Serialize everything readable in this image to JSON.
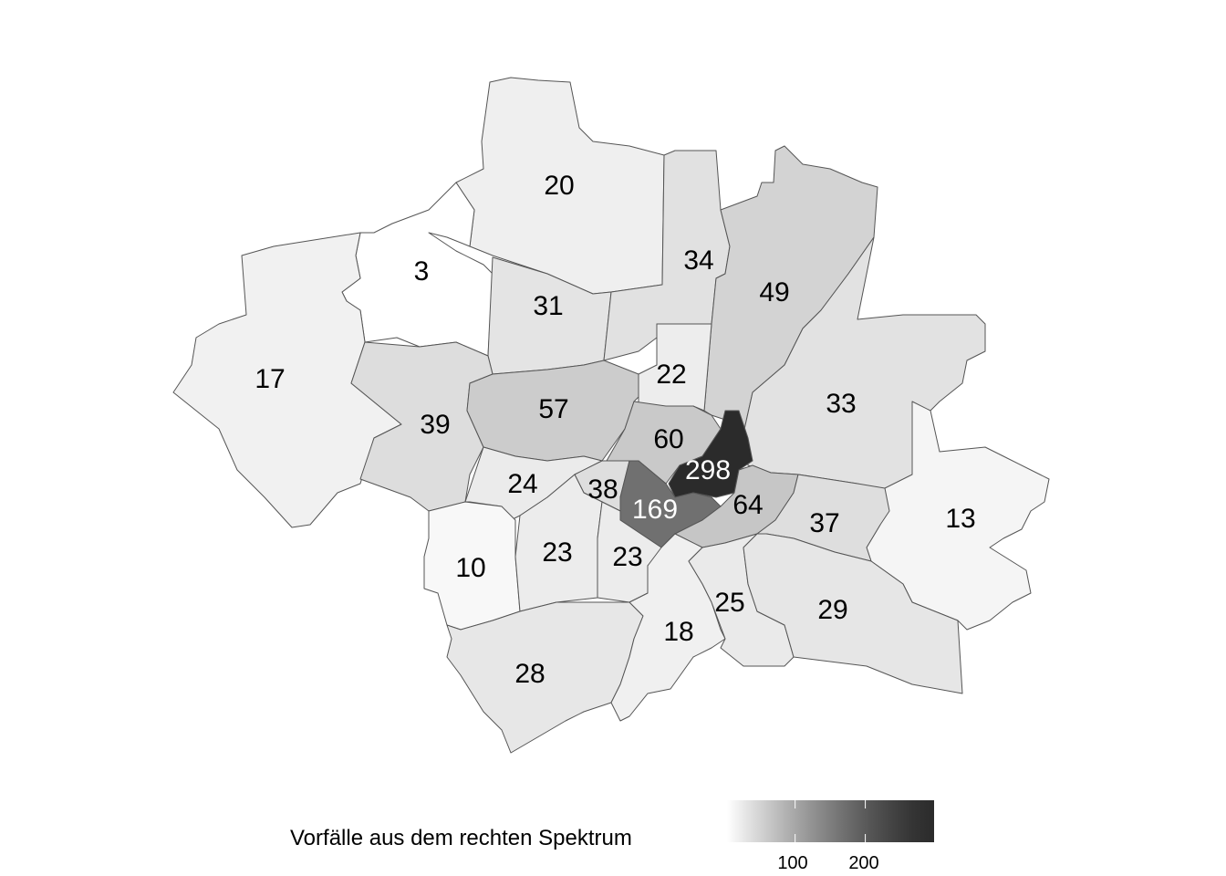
{
  "legend": {
    "title": "Vorfälle aus dem rechten Spektrum",
    "ticks": [
      {
        "value": 100,
        "label": "100"
      },
      {
        "value": 200,
        "label": "200"
      }
    ],
    "range": [
      3,
      298
    ],
    "low_color": "#ffffff",
    "high_color": "#2b2b2b"
  },
  "districts": [
    {
      "value": 20,
      "label": "20"
    },
    {
      "value": 3,
      "label": "3"
    },
    {
      "value": 31,
      "label": "31"
    },
    {
      "value": 34,
      "label": "34"
    },
    {
      "value": 49,
      "label": "49"
    },
    {
      "value": 17,
      "label": "17"
    },
    {
      "value": 39,
      "label": "39"
    },
    {
      "value": 57,
      "label": "57"
    },
    {
      "value": 22,
      "label": "22"
    },
    {
      "value": 33,
      "label": "33"
    },
    {
      "value": 13,
      "label": "13"
    },
    {
      "value": 60,
      "label": "60"
    },
    {
      "value": 298,
      "label": "298"
    },
    {
      "value": 24,
      "label": "24"
    },
    {
      "value": 38,
      "label": "38"
    },
    {
      "value": 169,
      "label": "169"
    },
    {
      "value": 64,
      "label": "64"
    },
    {
      "value": 37,
      "label": "37"
    },
    {
      "value": 10,
      "label": "10"
    },
    {
      "value": 23,
      "label": "23"
    },
    {
      "value": 23,
      "label": "23"
    },
    {
      "value": 28,
      "label": "28"
    },
    {
      "value": 18,
      "label": "18"
    },
    {
      "value": 25,
      "label": "25"
    },
    {
      "value": 29,
      "label": "29"
    }
  ]
}
